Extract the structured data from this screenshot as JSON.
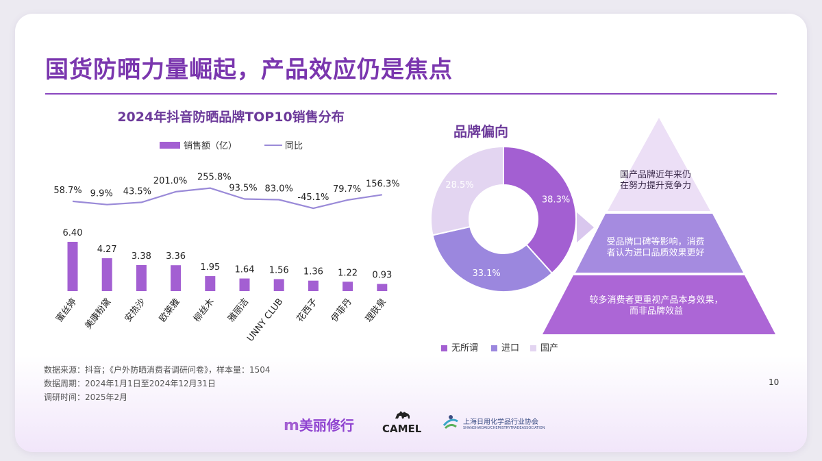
{
  "page": {
    "title": "国货防晒力量崛起，产品效应仍是焦点",
    "page_number": "10"
  },
  "chart_data": [
    {
      "type": "bar",
      "title": "2024年抖音防晒品牌TOP10销售分布",
      "categories": [
        "蜜丝婷",
        "美康粉黛",
        "安热沙",
        "欧莱雅",
        "柳丝木",
        "雅丽洁",
        "UNNY CLUB",
        "花西子",
        "伊菲丹",
        "理肤泉"
      ],
      "series": [
        {
          "name": "销售额（亿）",
          "type": "bar",
          "values": [
            6.4,
            4.27,
            3.38,
            3.36,
            1.95,
            1.64,
            1.56,
            1.36,
            1.22,
            0.93
          ],
          "labels": [
            "6.40",
            "4.27",
            "3.38",
            "3.36",
            "1.95",
            "1.64",
            "1.56",
            "1.36",
            "1.22",
            "0.93"
          ],
          "color": "#a35fd2"
        },
        {
          "name": "同比",
          "type": "line",
          "values": [
            58.7,
            9.9,
            43.5,
            201.0,
            255.8,
            93.5,
            83.0,
            -45.1,
            79.7,
            156.3
          ],
          "labels": [
            "58.7%",
            "9.9%",
            "43.5%",
            "201.0%",
            "255.8%",
            "93.5%",
            "83.0%",
            "-45.1%",
            "79.7%",
            "156.3%"
          ],
          "color": "#9a8ad8"
        }
      ],
      "legend": "top",
      "grid": false
    },
    {
      "type": "pie",
      "title": "品牌偏向",
      "donut": true,
      "slices": [
        {
          "name": "无所谓",
          "value": 38.3,
          "label": "38.3%",
          "color": "#a35fd2"
        },
        {
          "name": "进口",
          "value": 33.1,
          "label": "33.1%",
          "color": "#9b87de"
        },
        {
          "name": "国产",
          "value": 28.5,
          "label": "28.5%",
          "color": "#e3d5f1"
        }
      ],
      "legend": "bottom"
    }
  ],
  "pyramid": {
    "tiers": [
      {
        "text": "国产品牌近年来仍在努力提升竞争力"
      },
      {
        "text": "受品牌口碑等影响，消费者认为进口品质效果更好"
      },
      {
        "text": "较多消费者更重视产品本身效果，而非品牌效益"
      }
    ],
    "colors": {
      "top": "#ecdff6",
      "middle": "#a58be0",
      "bottom": "#ac66d6"
    }
  },
  "notes": [
    "数据来源：抖音；《户外防晒消费者调研问卷》，样本量：1504",
    "数据周期：2024年1月1日至2024年12月31日",
    "调研时间：2025年2月"
  ],
  "logos": {
    "meili": "美丽修行",
    "camel": "CAMEL",
    "association_cn": "上海日用化学品行业协会",
    "association_en": "SHANGHAIDAILYCHEMISTRYTRADEASSOCIATION"
  }
}
